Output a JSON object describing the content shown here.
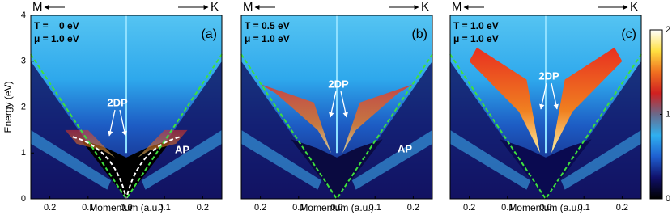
{
  "chart_data": [
    {
      "type": "heatmap",
      "xlabel": "Momentum (a.u.)",
      "ylabel": "Energy (eV)",
      "xlim": [
        -0.25,
        0.25
      ],
      "ylim": [
        0,
        4
      ],
      "xticks": [
        {
          "value": -0.2,
          "label": "0.2"
        },
        {
          "value": -0.1,
          "label": "0.1"
        },
        {
          "value": 0,
          "label": "0.0"
        },
        0.1,
        0.2
      ],
      "yticks": [
        0,
        1,
        2,
        3,
        4
      ],
      "annotations": {
        "left": "M",
        "right": "K",
        "temperature": "T =    0 eV",
        "mu": "μ = 1.0 eV",
        "panel": "(a)",
        "mode1": "2DP",
        "mode2": "AP"
      }
    },
    {
      "type": "heatmap",
      "xlabel": "Momentum (a.u.)",
      "xlim": [
        -0.25,
        0.25
      ],
      "ylim": [
        0,
        4
      ],
      "xticks": [
        {
          "value": -0.2,
          "label": "0.2"
        },
        {
          "value": -0.1,
          "label": "0.1"
        },
        {
          "value": 0,
          "label": "0.0"
        },
        0.1,
        0.2
      ],
      "annotations": {
        "left": "M",
        "right": "K",
        "temperature": "T = 0.5 eV",
        "mu": "μ = 1.0 eV",
        "panel": "(b)",
        "mode1": "2DP",
        "mode2": "AP"
      }
    },
    {
      "type": "heatmap",
      "xlabel": "Momentum (a.u.)",
      "xlim": [
        -0.25,
        0.25
      ],
      "ylim": [
        0,
        4
      ],
      "xticks": [
        {
          "value": -0.2,
          "label": "0.2"
        },
        {
          "value": -0.1,
          "label": "0.1"
        },
        {
          "value": 0,
          "label": "0.0"
        },
        0.1,
        0.2
      ],
      "annotations": {
        "left": "M",
        "right": "K",
        "temperature": "T = 1.0 eV",
        "mu": "μ = 1.0 eV",
        "panel": "(c)",
        "mode1": "2DP"
      }
    },
    {
      "type": "colorbar",
      "ylim": [
        0,
        2
      ],
      "yticks": [
        0,
        1,
        2
      ],
      "colors": [
        "#000000",
        "#10106a",
        "#1f5fd0",
        "#2fb0f0",
        "#6a6a8a",
        "#d02020",
        "#f07020",
        "#ffe040",
        "#ffffff"
      ]
    }
  ]
}
